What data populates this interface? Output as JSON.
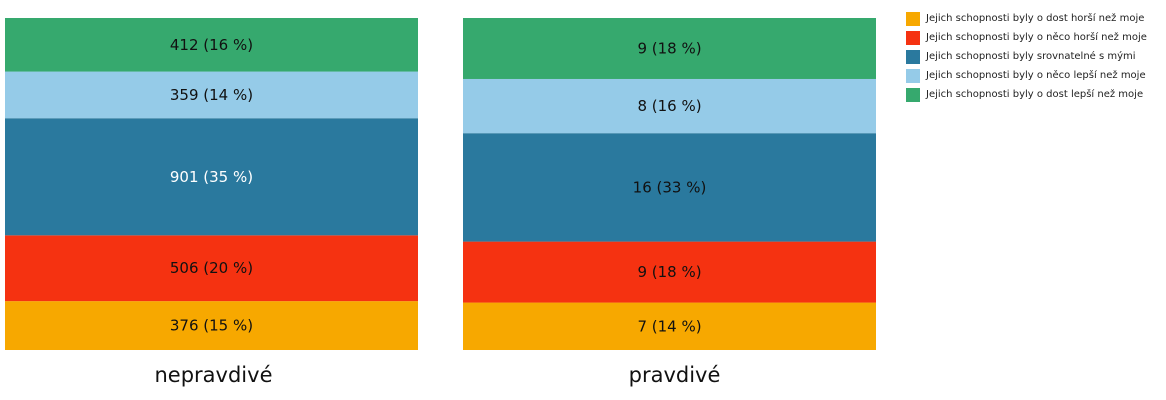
{
  "chart_data": {
    "type": "bar",
    "stacked": true,
    "categories": [
      "nepravdivé",
      "pravdivé"
    ],
    "series": [
      {
        "name": "Jejich schopnosti byly o dost horší než moje",
        "color": "#f7a800",
        "values": [
          376,
          7
        ],
        "labels": [
          "376 (15 %)",
          "7 (14 %)"
        ],
        "label_color": "#111111"
      },
      {
        "name": "Jejich schopnosti byly o něco horší než moje",
        "color": "#f53211",
        "values": [
          506,
          9
        ],
        "labels": [
          "506 (20 %)",
          "9 (18 %)"
        ],
        "label_color": "#111111"
      },
      {
        "name": "Jejich schopnosti byly srovnatelné s mými",
        "color": "#2a799e",
        "values": [
          901,
          16
        ],
        "labels": [
          "901 (35 %)",
          "16 (33 %)"
        ],
        "label_color_by_category": [
          "#ffffff",
          "#111111"
        ]
      },
      {
        "name": "Jejich schopnosti byly o něco lepší než moje",
        "color": "#95cbe8",
        "values": [
          359,
          8
        ],
        "labels": [
          "359 (14 %)",
          "8 (16 %)"
        ],
        "label_color": "#111111"
      },
      {
        "name": "Jejich schopnosti byly o dost lepší než moje",
        "color": "#36a96e",
        "values": [
          412,
          9
        ],
        "labels": [
          "412 (16 %)",
          "9 (18 %)"
        ],
        "label_color": "#111111"
      }
    ],
    "normalized": true,
    "legend_position": "top-right",
    "grid": false
  }
}
